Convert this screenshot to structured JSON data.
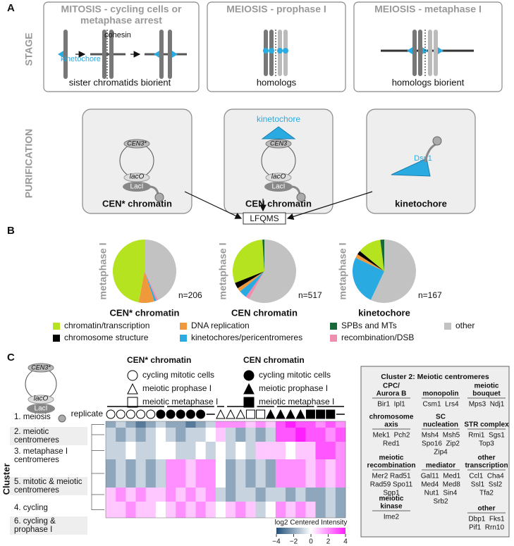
{
  "panel_labels": [
    "A",
    "B",
    "C"
  ],
  "stage": {
    "label": "STAGE",
    "boxes": [
      {
        "title": [
          "MITOSIS - cycling cells or",
          "metaphase arrest"
        ],
        "labels": [
          "cohesin",
          "kinetochore",
          "sister chromatids biorient"
        ]
      },
      {
        "title": [
          "MEIOSIS - prophase I"
        ],
        "labels": [
          "homologs"
        ]
      },
      {
        "title": [
          "MEIOSIS - metaphase I"
        ],
        "labels": [
          "homologs biorient"
        ]
      }
    ]
  },
  "purification": {
    "label": "PURIFICATION",
    "boxes": [
      {
        "name": "CEN* chromatin",
        "labels": [
          "CEN3*",
          "lacO",
          "LacI"
        ]
      },
      {
        "name": "CEN chromatin",
        "labels": [
          "kinetochore",
          "CEN3",
          "lacO",
          "LacI"
        ]
      },
      {
        "name": "kinetochore",
        "labels": [
          "Dsn1"
        ]
      }
    ],
    "method": "LFQMS"
  },
  "pie_legend": {
    "categories": [
      "chromatin/transcription",
      "chromosome structure",
      "DNA replication",
      "kinetochores/pericentromeres",
      "SPBs and MTs",
      "recombination/DSB",
      "other"
    ],
    "colors": [
      "#b5e31f",
      "#000000",
      "#f0993c",
      "#29abe2",
      "#17693a",
      "#f08cac",
      "#c2c2c2"
    ]
  },
  "chart_data": [
    {
      "type": "pie",
      "label": "metaphase I",
      "title": "CEN* chromatin",
      "subtitle": "n=206",
      "values": [
        47,
        0,
        8,
        1,
        0,
        1,
        43
      ]
    },
    {
      "type": "pie",
      "label": "metaphase I",
      "title": "CEN chromatin",
      "subtitle": "n=517",
      "values": [
        30,
        3,
        2,
        4,
        1,
        2,
        58
      ]
    },
    {
      "type": "pie",
      "label": "metaphase I",
      "title": "kinetochore",
      "subtitle": "n=167",
      "values": [
        12,
        2,
        2,
        25,
        2,
        0,
        57
      ]
    },
    {
      "type": "heatmap",
      "y_label": "Cluster",
      "column_label": "replicate",
      "construct_labels": [
        "CEN3*",
        "lacO",
        "LacI"
      ],
      "legend": [
        {
          "title": "CEN* chromatin",
          "items": [
            "cycling mitotic cells",
            "meiotic prophase I",
            "meiotic metaphase I"
          ]
        },
        {
          "title": "CEN chromatin",
          "items": [
            "cycling mitotic cells",
            "meiotic prophase I",
            "meiotic metaphase I"
          ]
        }
      ],
      "clusters": [
        [
          "1. meiosis"
        ],
        [
          "2. meiotic",
          "centromeres"
        ],
        [
          "3. metaphase I",
          "centromeres"
        ],
        [
          "5. mitotic & meiotic",
          "centromeres"
        ],
        [
          "4. cycling"
        ],
        [
          "6. cycling &",
          "prophase I"
        ]
      ],
      "values": [
        [
          -2,
          -1,
          -2,
          -3,
          -2,
          -1,
          -2,
          -2,
          -3,
          -2,
          -1,
          2,
          2,
          2,
          1,
          2,
          1,
          3,
          4,
          3,
          3,
          2,
          3,
          2
        ],
        [
          -1,
          -2,
          -1,
          -2,
          -1,
          0,
          -1,
          -2,
          -1,
          -1,
          0,
          1,
          -1,
          -2,
          -1,
          -2,
          -1,
          3,
          3,
          4,
          3,
          3,
          2,
          3
        ],
        [
          -1,
          -1,
          0,
          -1,
          -1,
          0,
          0,
          -1,
          -1,
          0,
          -1,
          0,
          -1,
          0,
          -1,
          1,
          1,
          1,
          0,
          1,
          1,
          3,
          3,
          2
        ],
        [
          -2,
          -1,
          -2,
          -1,
          -2,
          -1,
          2,
          2,
          1,
          2,
          2,
          0,
          -2,
          -1,
          -2,
          -1,
          -2,
          2,
          2,
          2,
          1,
          2,
          1,
          2
        ],
        [
          1,
          2,
          1,
          2,
          1,
          1,
          2,
          1,
          2,
          1,
          2,
          -1,
          -2,
          -1,
          -1,
          -2,
          -1,
          -1,
          -2,
          -1,
          -2,
          -2,
          -1,
          -2
        ],
        [
          1,
          1,
          2,
          1,
          1,
          0,
          1,
          2,
          1,
          2,
          1,
          0,
          1,
          2,
          1,
          -1,
          0,
          2,
          1,
          2,
          1,
          -2,
          -1,
          -2
        ]
      ],
      "colorbar": {
        "label": "log2 Centered Intensity",
        "lim": [
          -4,
          4
        ],
        "ticks": [
          {
            "value": -4,
            "label": "−4"
          },
          {
            "value": -2,
            "label": "−2"
          },
          0,
          2,
          4
        ]
      },
      "cluster_box": {
        "title": "Cluster 2: Meiotic centromeres",
        "groups": [
          {
            "heading": [
              "CPC/",
              "Aurora B"
            ],
            "items": [
              "Bir1  Ipl1"
            ]
          },
          {
            "heading": [
              "chromosome",
              "axis"
            ],
            "items": [
              "Mek1  Pch2",
              "Red1"
            ]
          },
          {
            "heading": [
              "meiotic",
              "recombination"
            ],
            "items": [
              "Mer2 Rad51",
              "Rad59 Spo11",
              "Spp1"
            ]
          },
          {
            "heading": [
              "meiotic",
              "kinase"
            ],
            "items": [
              "Ime2"
            ]
          },
          {
            "heading": [
              "monopolin"
            ],
            "items": [
              "Csm1  Lrs4"
            ]
          },
          {
            "heading": [
              "SC",
              "nucleation"
            ],
            "items": [
              "Msh4  Msh5",
              "Spo16  Zip2",
              "Zip4"
            ]
          },
          {
            "heading": [
              "mediator"
            ],
            "items": [
              "Gal11  Med1",
              "Med4  Med8",
              "Nut1  Sin4",
              "Srb2"
            ]
          },
          {
            "heading": [
              "meiotic",
              "bouquet"
            ],
            "items": [
              "Mps3  Ndj1"
            ]
          },
          {
            "heading": [
              "STR complex"
            ],
            "items": [
              "Rmi1  Sgs1",
              "Top3"
            ]
          },
          {
            "heading": [
              "other",
              "transcription"
            ],
            "items": [
              "Ccl1  Cha4",
              "Ssl1  Ssl2",
              "Tfa2"
            ]
          },
          {
            "heading": [
              "other"
            ],
            "items": [
              "Dbp1  Fks1",
              "Pif1  Rrn10"
            ]
          }
        ]
      }
    }
  ]
}
